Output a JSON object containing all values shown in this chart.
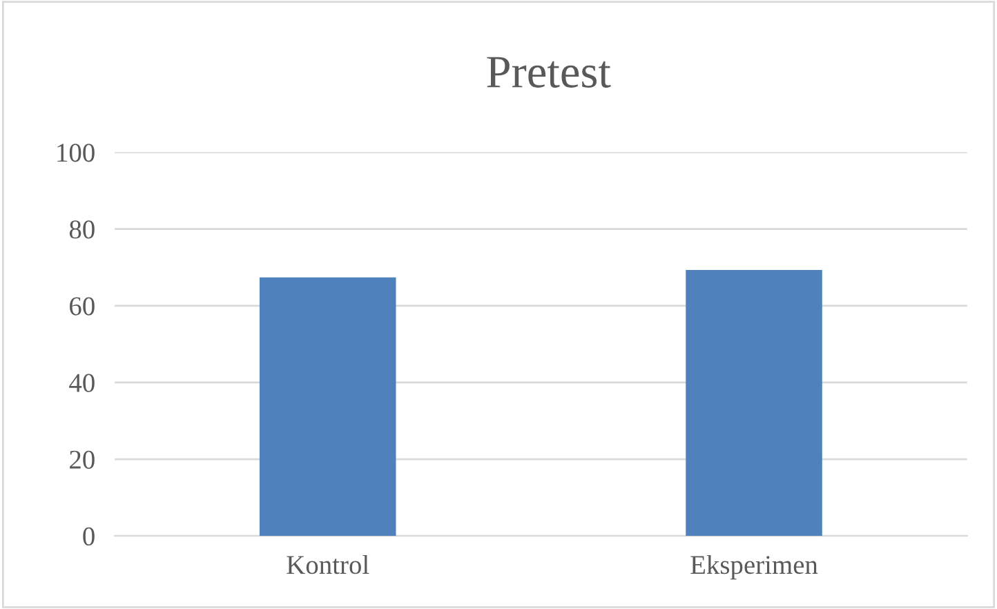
{
  "chart_data": {
    "type": "bar",
    "title": "Pretest",
    "categories": [
      "Kontrol",
      "Eksperimen"
    ],
    "values": [
      67.4,
      69.3
    ],
    "color": "#4f81bd",
    "ylim": [
      0,
      100
    ],
    "yticks": [
      0,
      20,
      40,
      60,
      80,
      100
    ],
    "grid": "y"
  }
}
